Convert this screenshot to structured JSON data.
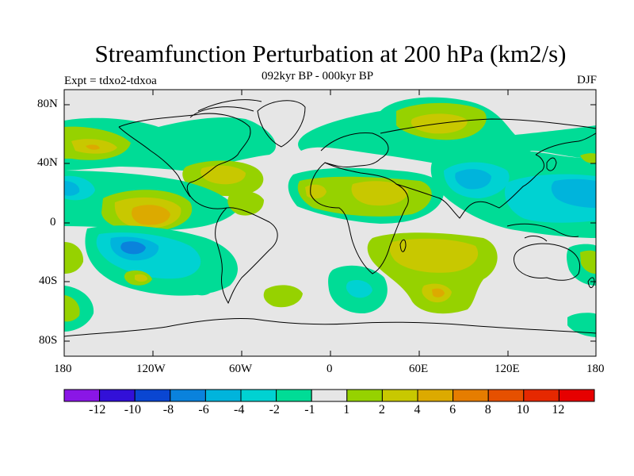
{
  "map": {
    "title": "Streamfunction Perturbation at 200 hPa (km2/s)",
    "subtitle": "092kyr BP - 000kyr BP",
    "left_label": "Expt = tdxo2-tdxoa",
    "right_label": "DJF",
    "lat_ticks": [
      "80N",
      "40N",
      "0",
      "40S",
      "80S"
    ],
    "lon_ticks": [
      "180",
      "120W",
      "60W",
      "0",
      "60E",
      "120E",
      "180"
    ],
    "background_color": "#e6e6e6"
  },
  "colorbar": {
    "labels": [
      "-12",
      "-10",
      "-8",
      "-6",
      "-4",
      "-2",
      "-1",
      "1",
      "2",
      "4",
      "6",
      "8",
      "10",
      "12"
    ],
    "colors": [
      "#8a16e6",
      "#3210d8",
      "#0a46d2",
      "#0a82dc",
      "#00b4dc",
      "#00d2d2",
      "#00dc96",
      "#e6e6e6",
      "#96d200",
      "#c8c800",
      "#dcaa00",
      "#e67d00",
      "#e65000",
      "#e62800",
      "#e60000"
    ]
  }
}
